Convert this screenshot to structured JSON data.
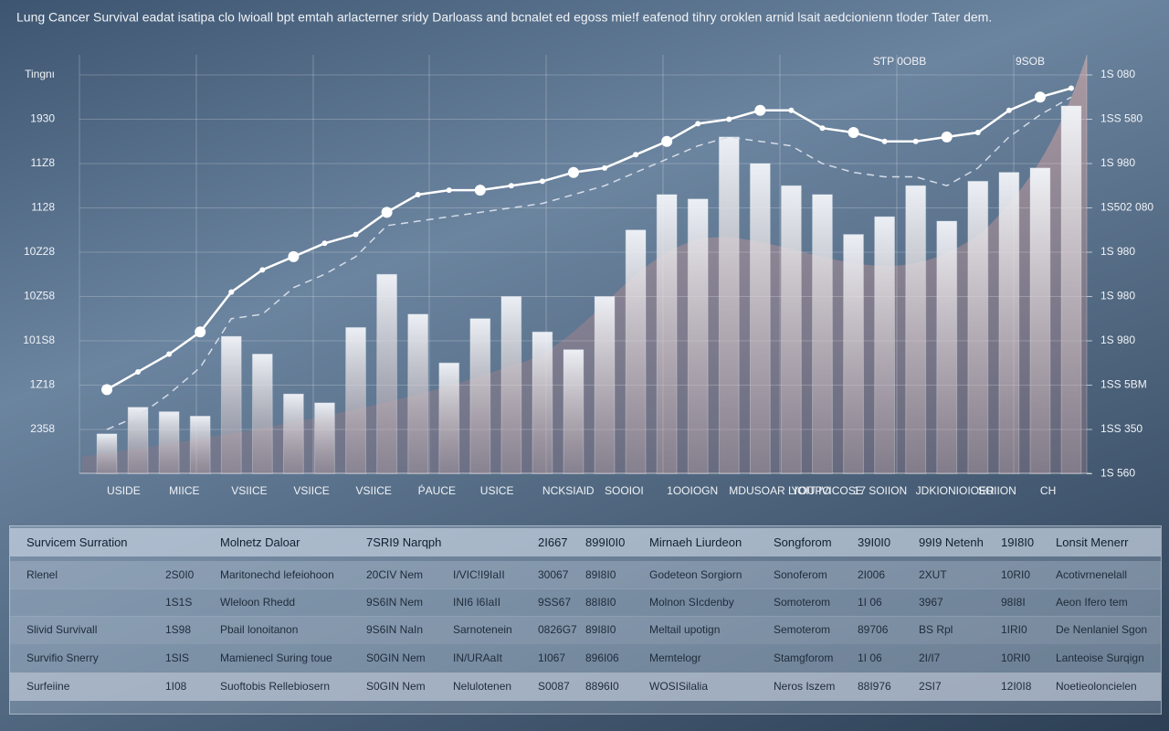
{
  "chart_data": {
    "type": "bar",
    "title": "Lung Cancer Survival eadat isatipa clo lwioall bpt emtah arlacterner sridy  Darloass and bcnalet ed egoss mie!f eafenod tihry oroklen arnid lsait aedcionienn tloder Tater dem.",
    "annotations": [
      "SƬP 0OBB",
      "9SOB"
    ],
    "categories": [
      "USIDE",
      null,
      "MIICE",
      null,
      "VSIICE",
      null,
      "VSIICE",
      null,
      "VSIICE",
      null,
      "ṔAUCE",
      null,
      "USICE",
      null,
      "NCKSIAID",
      null,
      "SOOIOI",
      null,
      "1OOIOGN",
      null,
      "MDUSOAR LIOIT IVICOSE",
      null,
      "YOUPO",
      null,
      "17 SOIION",
      null,
      "JDKIONIOIOER",
      null,
      "SOIION",
      null,
      "CH",
      null
    ],
    "series": [
      {
        "name": "bars",
        "color": "#e9eef5",
        "values": [
          0.9,
          1.5,
          1.4,
          1.3,
          3.1,
          2.7,
          1.8,
          1.6,
          3.3,
          4.5,
          3.6,
          2.5,
          3.5,
          4.0,
          3.2,
          2.8,
          4.0,
          5.5,
          6.3,
          6.2,
          7.6,
          7.0,
          6.5,
          6.3,
          5.4,
          5.8,
          6.5,
          5.7,
          6.6,
          6.8,
          6.9,
          8.3
        ]
      },
      {
        "name": "line",
        "color": "#ffffff",
        "values": [
          1.9,
          2.3,
          2.7,
          3.2,
          4.1,
          4.6,
          4.9,
          5.2,
          5.4,
          5.9,
          6.3,
          6.4,
          6.4,
          6.5,
          6.6,
          6.8,
          6.9,
          7.2,
          7.5,
          7.9,
          8.0,
          8.2,
          8.2,
          7.8,
          7.7,
          7.5,
          7.5,
          7.6,
          7.7,
          8.2,
          8.5,
          8.7
        ]
      },
      {
        "name": "dashed",
        "color": "#d5dde8",
        "values": [
          1.0,
          1.3,
          1.8,
          2.4,
          3.5,
          3.6,
          4.2,
          4.5,
          4.9,
          5.6,
          5.7,
          5.8,
          5.9,
          6.0,
          6.1,
          6.3,
          6.5,
          6.8,
          7.1,
          7.4,
          7.6,
          7.5,
          7.4,
          7.0,
          6.8,
          6.7,
          6.7,
          6.5,
          6.9,
          7.6,
          8.1,
          8.5
        ]
      }
    ],
    "ylim": [
      0,
      10
    ],
    "yticks": [
      {
        "value": 1,
        "label": "2358"
      },
      {
        "value": 2,
        "label": "1Z18"
      },
      {
        "value": 3,
        "label": "101S8"
      },
      {
        "value": 4,
        "label": "10Z58"
      },
      {
        "value": 5,
        "label": "10Z28"
      },
      {
        "value": 6,
        "label": "1128"
      },
      {
        "value": 7,
        "label": "11Z8"
      },
      {
        "value": 8,
        "label": "1930"
      },
      {
        "value": 9,
        "label": "Tingnı"
      }
    ],
    "y2lim": [
      0,
      10
    ],
    "y2ticks": [
      {
        "value": 0,
        "label": "1S 560"
      },
      {
        "value": 1,
        "label": "1SS 350"
      },
      {
        "value": 2,
        "label": "1SS 5BM"
      },
      {
        "value": 3,
        "label": "1S 980"
      },
      {
        "value": 4,
        "label": "1S 980"
      },
      {
        "value": 5,
        "label": "1S 980"
      },
      {
        "value": 6,
        "label": "1S502 080"
      },
      {
        "value": 7,
        "label": "1S 980"
      },
      {
        "value": 8,
        "label": "1SS 580"
      },
      {
        "value": 9,
        "label": "1S 080"
      }
    ],
    "grid": true
  },
  "table": {
    "rows": [
      [
        "Survicem Surration",
        null,
        "Molnetz Daloar",
        "7SRI9 Narqph",
        null,
        "2I667",
        "899I0I0",
        "Mirnaeh Liurdeon",
        "Songforom",
        "39I0I0",
        "99I9 Netenh",
        "19I8I0",
        "Lonsit Menerr"
      ],
      [
        "Rlenel",
        "2S0I0",
        "Maritonechd lefeiohoon",
        "20CIV Nem",
        "I/VIC!I9IaII",
        "30067",
        "89I8I0",
        "Godeteon Sorgiorn",
        "Sonoferom",
        "2I006",
        "2ΧUT",
        "10RI0",
        "Acotivrnenelall"
      ],
      [
        null,
        "1S1S",
        "Wleloon Rhedd",
        "9S6IN Nem",
        "INI6 I6IaII",
        "9SS67",
        "88I8I0",
        "Molnon SIcdenby",
        "Somoterom",
        "1I 06",
        "3967",
        "98I8I",
        "Aeon Ifero tem"
      ],
      [
        "Slivid Survivall",
        "1S98",
        "Pbail lonoitanon",
        "9S6IN NaIn",
        "Sarnotenein",
        "0826G7",
        "89I8I0",
        "Meltail upotign",
        "Semoterom",
        "89706",
        "BS Rpl",
        "1IRI0",
        "De Nenlaniel Sgon"
      ],
      [
        "Survifio Snerry",
        "1SIS",
        "Mamienecl Suring toue",
        "S0GIN Nem",
        "IN/URAaIt",
        "1I067",
        "896I06",
        "Memtelogr",
        "Stamgforom",
        "1I 06",
        "2I/I7",
        "10RI0",
        "Lanteoise Surqign"
      ],
      [
        "Surfeiine",
        "1I08",
        "Suoftobis Rellebiosern",
        "S0GIN Nem",
        "Nelulotenen",
        "S0087",
        "8896I0",
        "WOSISilalia",
        "Neros Iszem",
        "88I976",
        "2SI7",
        "12I0I8",
        "Noetieoloncielen"
      ]
    ]
  }
}
